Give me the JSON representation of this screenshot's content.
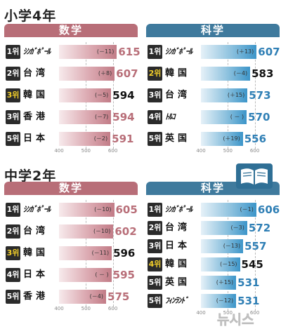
{
  "sections": [
    {
      "title": "小学4年",
      "panels": [
        {
          "subject": "数学",
          "kind": "math",
          "rows": [
            {
              "rank": "1위",
              "country": "ｼﾝｶﾞﾎﾟｰﾙ",
              "change": "(－11)",
              "score": 615,
              "korea": false,
              "tight": true
            },
            {
              "rank": "2위",
              "country": "台湾",
              "change": "(＋8)",
              "score": 607,
              "korea": false,
              "tight": false
            },
            {
              "rank": "3위",
              "country": "韓国",
              "change": "(－5)",
              "score": 594,
              "korea": true,
              "tight": false
            },
            {
              "rank": "3위",
              "country": "香港",
              "change": "(－7)",
              "score": 594,
              "korea": false,
              "tight": false
            },
            {
              "rank": "5위",
              "country": "日本",
              "change": "(－2)",
              "score": 591,
              "korea": false,
              "tight": false
            }
          ]
        },
        {
          "subject": "科学",
          "kind": "sci",
          "rows": [
            {
              "rank": "1위",
              "country": "ｼﾝｶﾞﾎﾟｰﾙ",
              "change": "(＋13)",
              "score": 607,
              "korea": false,
              "tight": true
            },
            {
              "rank": "2위",
              "country": "韓国",
              "change": "(－4)",
              "score": 583,
              "korea": true,
              "tight": false
            },
            {
              "rank": "3위",
              "country": "台湾",
              "change": "(＋15)",
              "score": 573,
              "korea": false,
              "tight": false
            },
            {
              "rank": "4위",
              "country": "ﾄﾙｺ",
              "change": "( － )",
              "score": 570,
              "korea": false,
              "tight": true
            },
            {
              "rank": "5위",
              "country": "英国",
              "change": "(＋19)",
              "score": 556,
              "korea": false,
              "tight": false
            }
          ]
        }
      ]
    },
    {
      "title": "中学2年",
      "panels": [
        {
          "subject": "数学",
          "kind": "math",
          "rows": [
            {
              "rank": "1위",
              "country": "ｼﾝｶﾞﾎﾟｰﾙ",
              "change": "(－10)",
              "score": 605,
              "korea": false,
              "tight": true
            },
            {
              "rank": "2위",
              "country": "台湾",
              "change": "(－10)",
              "score": 602,
              "korea": false,
              "tight": false
            },
            {
              "rank": "3위",
              "country": "韓国",
              "change": "(－11)",
              "score": 596,
              "korea": true,
              "tight": false
            },
            {
              "rank": "4위",
              "country": "日本",
              "change": "( － )",
              "score": 595,
              "korea": false,
              "tight": false
            },
            {
              "rank": "5위",
              "country": "香港",
              "change": "(－4)",
              "score": 575,
              "korea": false,
              "tight": false
            }
          ]
        },
        {
          "subject": "科学",
          "kind": "sci",
          "rows": [
            {
              "rank": "1위",
              "country": "ｼﾝｶﾞﾎﾟｰﾙ",
              "change": "(－1)",
              "score": 606,
              "korea": false,
              "tight": true
            },
            {
              "rank": "2위",
              "country": "台湾",
              "change": "(－3)",
              "score": 572,
              "korea": false,
              "tight": false
            },
            {
              "rank": "3위",
              "country": "日本",
              "change": "(－13)",
              "score": 557,
              "korea": false,
              "tight": false
            },
            {
              "rank": "4위",
              "country": "韓国",
              "change": "(－15)",
              "score": 545,
              "korea": true,
              "tight": false
            },
            {
              "rank": "5위",
              "country": "英国",
              "change": "(＋15)",
              "score": 531,
              "korea": false,
              "tight": false
            },
            {
              "rank": "5위",
              "country": "ﾌｨﾝﾗﾝﾄﾞ",
              "change": "(－12)",
              "score": 531,
              "korea": false,
              "tight": true
            }
          ]
        }
      ]
    }
  ],
  "axis_ticks": [
    "400",
    "500",
    "600"
  ],
  "logo_text": "뉴시스",
  "chart_data": [
    {
      "type": "bar",
      "categories": [
        "ｼﾝｶﾞﾎﾟｰﾙ",
        "台湾",
        "韓国",
        "香港",
        "日本"
      ],
      "values": [
        615,
        607,
        594,
        594,
        591
      ],
      "changes": [
        -11,
        8,
        -5,
        -7,
        -2
      ],
      "xlim": [
        400,
        640
      ]
    },
    {
      "type": "bar",
      "categories": [
        "ｼﾝｶﾞﾎﾟｰﾙ",
        "韓国",
        "台湾",
        "ﾄﾙｺ",
        "英国"
      ],
      "values": [
        607,
        583,
        573,
        570,
        556
      ],
      "changes": [
        13,
        -4,
        15,
        null,
        19
      ],
      "xlim": [
        400,
        640
      ]
    },
    {
      "type": "bar",
      "categories": [
        "ｼﾝｶﾞﾎﾟｰﾙ",
        "台湾",
        "韓国",
        "日本",
        "香港"
      ],
      "values": [
        605,
        602,
        596,
        595,
        575
      ],
      "changes": [
        -10,
        -10,
        -11,
        null,
        -4
      ],
      "xlim": [
        400,
        640
      ]
    },
    {
      "type": "bar",
      "categories": [
        "ｼﾝｶﾞﾎﾟｰﾙ",
        "台湾",
        "日本",
        "韓国",
        "英国",
        "ﾌｨﾝﾗﾝﾄﾞ"
      ],
      "values": [
        606,
        572,
        557,
        545,
        531,
        531
      ],
      "changes": [
        -1,
        -3,
        -13,
        -15,
        15,
        -12
      ],
      "xlim": [
        400,
        640
      ]
    }
  ]
}
